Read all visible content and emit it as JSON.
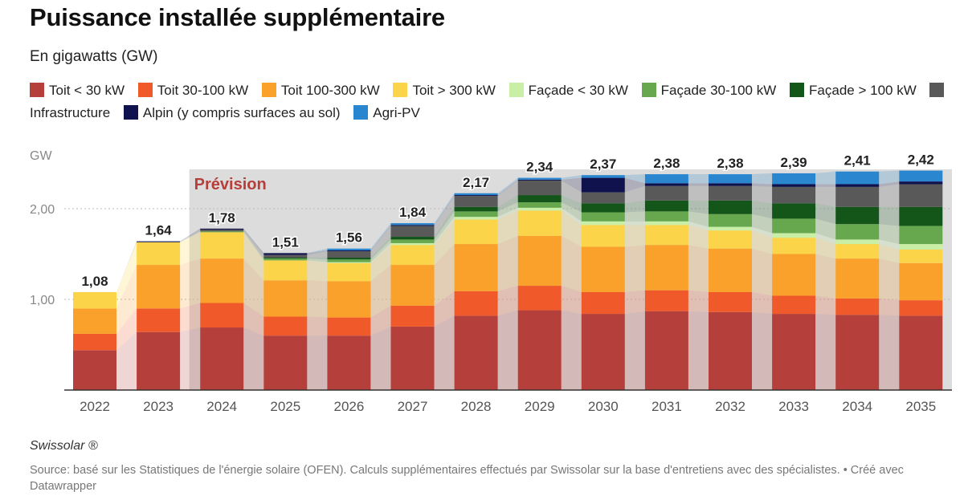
{
  "title": "Puissance installée supplémentaire",
  "subtitle": "En gigawatts (GW)",
  "brand": "Swissolar ®",
  "source": "Source: basé sur les Statistiques de l'énergie solaire (OFEN). Calculs supplémentaires effectués par Swissolar sur la base d'entretiens avec des spécialistes. • Créé avec Datawrapper",
  "chart_data": {
    "type": "bar",
    "stacked": true,
    "categories": [
      "2022",
      "2023",
      "2024",
      "2025",
      "2026",
      "2027",
      "2028",
      "2029",
      "2030",
      "2031",
      "2032",
      "2033",
      "2034",
      "2035"
    ],
    "ylabel": "GW",
    "ylim": [
      0,
      2.5
    ],
    "yticks": [
      {
        "value": 1.0,
        "label": "1,00"
      },
      {
        "value": 2.0,
        "label": "2,00"
      }
    ],
    "totals": [
      1.08,
      1.64,
      1.78,
      1.51,
      1.56,
      1.84,
      2.17,
      2.34,
      2.37,
      2.38,
      2.38,
      2.39,
      2.41,
      2.42
    ],
    "total_labels": [
      "1,08",
      "1,64",
      "1,78",
      "1,51",
      "1,56",
      "1,84",
      "2,17",
      "2,34",
      "2,37",
      "2,38",
      "2,38",
      "2,39",
      "2,41",
      "2,42"
    ],
    "forecast_label": "Prévision",
    "forecast_start": "2024",
    "series": [
      {
        "name": "Toit < 30 kW",
        "color": "#b53f3a",
        "values": [
          0.44,
          0.64,
          0.69,
          0.6,
          0.6,
          0.7,
          0.82,
          0.88,
          0.84,
          0.87,
          0.86,
          0.84,
          0.83,
          0.82
        ]
      },
      {
        "name": "Toit 30-100 kW",
        "color": "#f05a2a",
        "values": [
          0.18,
          0.26,
          0.27,
          0.21,
          0.2,
          0.23,
          0.27,
          0.27,
          0.24,
          0.23,
          0.22,
          0.2,
          0.18,
          0.17
        ]
      },
      {
        "name": "Toit 100-300 kW",
        "color": "#f9a12a",
        "values": [
          0.28,
          0.48,
          0.49,
          0.4,
          0.4,
          0.45,
          0.52,
          0.55,
          0.5,
          0.5,
          0.48,
          0.46,
          0.44,
          0.41
        ]
      },
      {
        "name": "Toit > 300 kW",
        "color": "#fbd44a",
        "values": [
          0.18,
          0.25,
          0.29,
          0.22,
          0.2,
          0.22,
          0.27,
          0.28,
          0.24,
          0.22,
          0.2,
          0.18,
          0.16,
          0.15
        ]
      },
      {
        "name": "Façade < 30 kW",
        "color": "#c9eea5",
        "values": [
          0,
          0,
          0,
          0,
          0.01,
          0.02,
          0.03,
          0.03,
          0.04,
          0.04,
          0.04,
          0.05,
          0.05,
          0.06
        ]
      },
      {
        "name": "Façade 30-100 kW",
        "color": "#67a84f",
        "values": [
          0,
          0,
          0.01,
          0.02,
          0.03,
          0.04,
          0.06,
          0.06,
          0.1,
          0.11,
          0.14,
          0.16,
          0.17,
          0.2
        ]
      },
      {
        "name": "Façade > 100 kW",
        "color": "#14561a",
        "values": [
          0,
          0,
          0,
          0.01,
          0.02,
          0.03,
          0.05,
          0.08,
          0.1,
          0.12,
          0.15,
          0.17,
          0.19,
          0.21
        ]
      },
      {
        "name": "Infrastructure",
        "color": "#595959",
        "values": [
          0,
          0,
          0.02,
          0.03,
          0.07,
          0.12,
          0.12,
          0.16,
          0.12,
          0.16,
          0.16,
          0.18,
          0.22,
          0.25
        ]
      },
      {
        "name": "Alpin (y compris surfaces au sol)",
        "color": "#10124d",
        "values": [
          0,
          0.01,
          0.01,
          0.02,
          0.01,
          0.01,
          0.01,
          0.01,
          0.16,
          0.03,
          0.03,
          0.03,
          0.03,
          0.03
        ]
      },
      {
        "name": "Agri-PV",
        "color": "#2a87cf",
        "values": [
          0,
          0,
          0,
          0,
          0.02,
          0.02,
          0.02,
          0.02,
          0.03,
          0.1,
          0.1,
          0.12,
          0.14,
          0.12
        ]
      }
    ]
  }
}
